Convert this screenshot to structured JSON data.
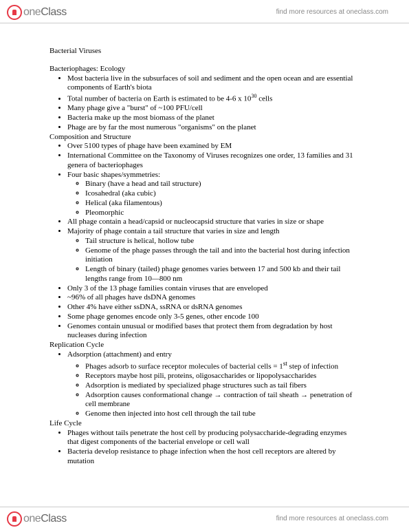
{
  "brand": {
    "one": "one",
    "class": "Class"
  },
  "header_link": "find more resources at oneclass.com",
  "doc_title": "Bacterial Viruses",
  "sections": [
    {
      "title": "Bacteriophages: Ecology",
      "items": [
        {
          "t": "Most bacteria live in the subsurfaces of soil and sediment and the open ocean and are essential components of Earth's biota"
        },
        {
          "t": "Total number of bacteria on Earth is estimated to be 4-6 x 10",
          "sup": "30",
          "t2": " cells"
        },
        {
          "t": "Many phage give a \"burst\" of ~100 PFU/cell"
        },
        {
          "t": "Bacteria make up the most biomass of the planet"
        },
        {
          "t": "Phage are by far the most numerous \"organisms\" on the planet"
        }
      ]
    },
    {
      "title": "Composition and Structure",
      "items": [
        {
          "t": "Over 5100 types of phage have been examined by EM"
        },
        {
          "t": "International Committee on the Taxonomy of Viruses recognizes one order, 13 families and 31 genera of bacteriophages"
        },
        {
          "t": "Four basic shapes/symmetries:",
          "sub": [
            "Binary (have a head and tail structure)",
            "Icosahedral (aka cubic)",
            "Helical (aka filamentous)",
            "Pleomorphic"
          ]
        },
        {
          "t": "All phage contain a head/capsid or nucleocapsid structure that varies in size or shape"
        },
        {
          "t": "Majority of phage contain a tail structure that varies in size and length",
          "sub": [
            "Tail structure is helical, hollow tube",
            "Genome of the phage passes through the tail and into the bacterial host during infection initiation",
            "Length of binary (tailed) phage genomes varies between 17 and 500 kb and their tail lengths range from 10—800 nm"
          ]
        },
        {
          "t": "Only 3 of the 13 phage families contain viruses that are enveloped"
        },
        {
          "t": "~96% of all phages have dsDNA genomes"
        },
        {
          "t": "Other 4% have either ssDNA, ssRNA or dsRNA genomes"
        },
        {
          "t": "Some phage genomes encode only 3-5 genes, other encode 100"
        },
        {
          "t": "Genomes contain unusual or modified bases that protect them from degradation by host nucleases during infection"
        }
      ]
    },
    {
      "title": "Replication Cycle",
      "items": [
        {
          "t": "Adsorption (attachment) and entry",
          "sub": [
            "Phages adsorb to surface receptor molecules of bacterial cells = 1<sup>st</sup> step of infection",
            "Receptors maybe host pili, proteins, oligosaccharides or lipopolysaccharides",
            "Adsorption is mediated by specialized phage structures such as tail fibers",
            "Adsorption causes conformational change → contraction of tail sheath → penetration of cell membrane",
            "Genome then injected into host cell through the tail tube"
          ]
        }
      ]
    },
    {
      "title": "Life Cycle",
      "items": [
        {
          "t": "Phages without tails penetrate the host cell by producing polysaccharide-degrading enzymes that digest components of the bacterial envelope or cell wall"
        },
        {
          "t": "Bacteria develop resistance to phage infection when the host cell receptors are altered by mutation"
        }
      ]
    }
  ]
}
